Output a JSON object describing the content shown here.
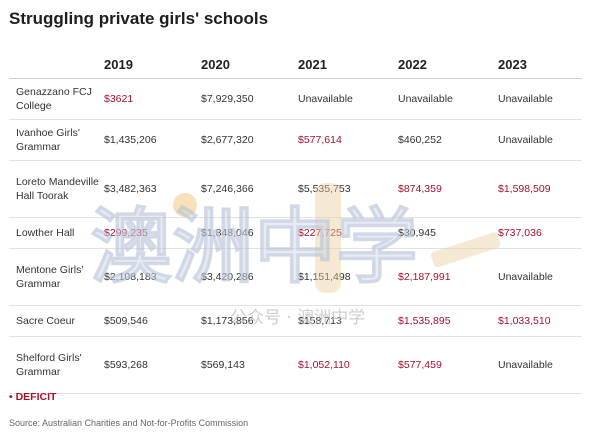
{
  "title": "Struggling private girls' schools",
  "years": [
    "2019",
    "2020",
    "2021",
    "2022",
    "2023"
  ],
  "rows": [
    {
      "school": "Genazzano FCJ College",
      "values": [
        "$3621",
        "$7,929,350",
        "Unavailable",
        "Unavailable",
        "Unavailable"
      ],
      "deficit": [
        true,
        false,
        false,
        false,
        false
      ]
    },
    {
      "school": "Ivanhoe Girls' Grammar",
      "values": [
        "$1,435,206",
        "$2,677,320",
        "$577,614",
        "$460,252",
        "Unavailable"
      ],
      "deficit": [
        false,
        false,
        true,
        false,
        false
      ]
    },
    {
      "school": "Loreto Mandeville Hall Toorak",
      "values": [
        "$3,482,363",
        "$7,246,366",
        "$5,535,753",
        "$874,359",
        "$1,598,509"
      ],
      "deficit": [
        false,
        false,
        false,
        true,
        true
      ]
    },
    {
      "school": "Lowther Hall",
      "values": [
        "$299,235",
        "$1,848,046",
        "$227,725",
        "$30,945",
        "$737,036"
      ],
      "deficit": [
        true,
        false,
        true,
        false,
        true
      ]
    },
    {
      "school": "Mentone Girls' Grammar",
      "values": [
        "$2,108,183",
        "$3,420,286",
        "$1,151,498",
        "$2,187,991",
        "Unavailable"
      ],
      "deficit": [
        false,
        false,
        false,
        true,
        false
      ]
    },
    {
      "school": "Sacre Coeur",
      "values": [
        "$509,546",
        "$1,173,856",
        "$158,713",
        "$1,535,895",
        "$1,033,510"
      ],
      "deficit": [
        false,
        false,
        false,
        true,
        true
      ]
    },
    {
      "school": "Shelford Girls' Grammar",
      "values": [
        "$593,268",
        "$569,143",
        "$1,052,110",
        "$577,459",
        "Unavailable"
      ],
      "deficit": [
        false,
        false,
        true,
        true,
        false
      ]
    }
  ],
  "legend": "• DEFICIT",
  "source": "Source: Australian Charities and Not-for-Profits Commission",
  "watermark": {
    "big": "澳洲中学",
    "small": "公众号 · 澳洲中学"
  },
  "colors": {
    "deficit": "#a8102c"
  }
}
